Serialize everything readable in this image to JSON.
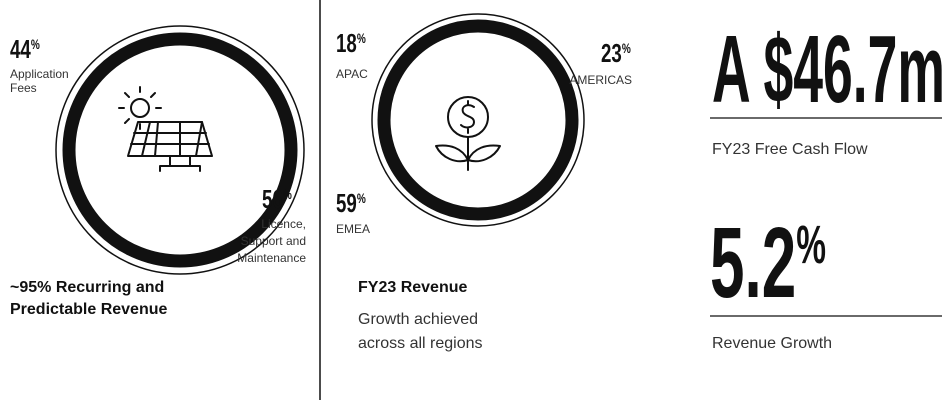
{
  "panel1": {
    "stats": [
      {
        "value": "44",
        "unit": "%",
        "label": [
          "Application",
          "Fees"
        ]
      },
      {
        "value": "56",
        "unit": "%",
        "label": [
          "Licence,",
          "Support and",
          "Maintenance"
        ]
      }
    ],
    "caption": [
      "~95% Recurring and",
      "Predictable Revenue"
    ]
  },
  "panel2": {
    "stats": [
      {
        "value": "18",
        "unit": "%",
        "label": "APAC"
      },
      {
        "value": "23",
        "unit": "%",
        "label": "AMERICAS"
      },
      {
        "value": "59",
        "unit": "%",
        "label": "EMEA"
      }
    ],
    "title": "FY23 Revenue",
    "subtitle": [
      "Growth achieved",
      "across all regions"
    ]
  },
  "panel3": {
    "cash_flow": {
      "value": "A $46.7m",
      "label": "FY23 Free Cash Flow"
    },
    "growth": {
      "value": "5.2",
      "unit": "%",
      "label": "Revenue Growth"
    }
  }
}
